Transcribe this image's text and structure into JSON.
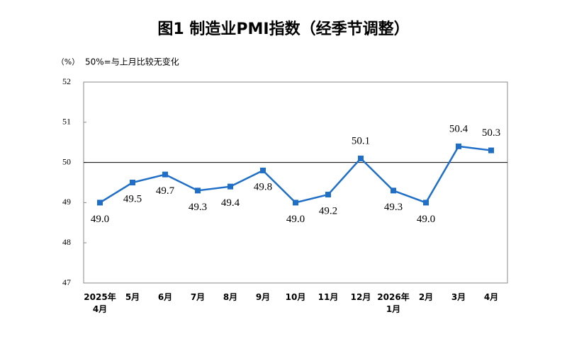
{
  "chart_data": {
    "type": "line",
    "title": "图1  制造业PMI指数（经季节调整）",
    "y_unit": "（%）",
    "note": "50%=与上月比较无变化",
    "categories": [
      "2025年\n4月",
      "5月",
      "6月",
      "7月",
      "8月",
      "9月",
      "10月",
      "11月",
      "12月",
      "2026年\n1月",
      "2月",
      "3月",
      "4月"
    ],
    "series": [
      {
        "name": "制造业PMI",
        "color": "#1f6fc8",
        "values": [
          49.0,
          49.5,
          49.7,
          49.3,
          49.4,
          49.8,
          49.0,
          49.2,
          50.1,
          49.3,
          49.0,
          50.4,
          50.3
        ],
        "value_labels": [
          "49.0",
          "49.5",
          "49.7",
          "49.3",
          "49.4",
          "49.8",
          "49.0",
          "49.2",
          "50.1",
          "49.3",
          "49.0",
          "50.4",
          "50.3"
        ]
      }
    ],
    "ylim": [
      47,
      52
    ],
    "yticks": [
      47,
      48,
      49,
      50,
      51,
      52
    ],
    "reference_line": 50,
    "show_legend": false
  }
}
